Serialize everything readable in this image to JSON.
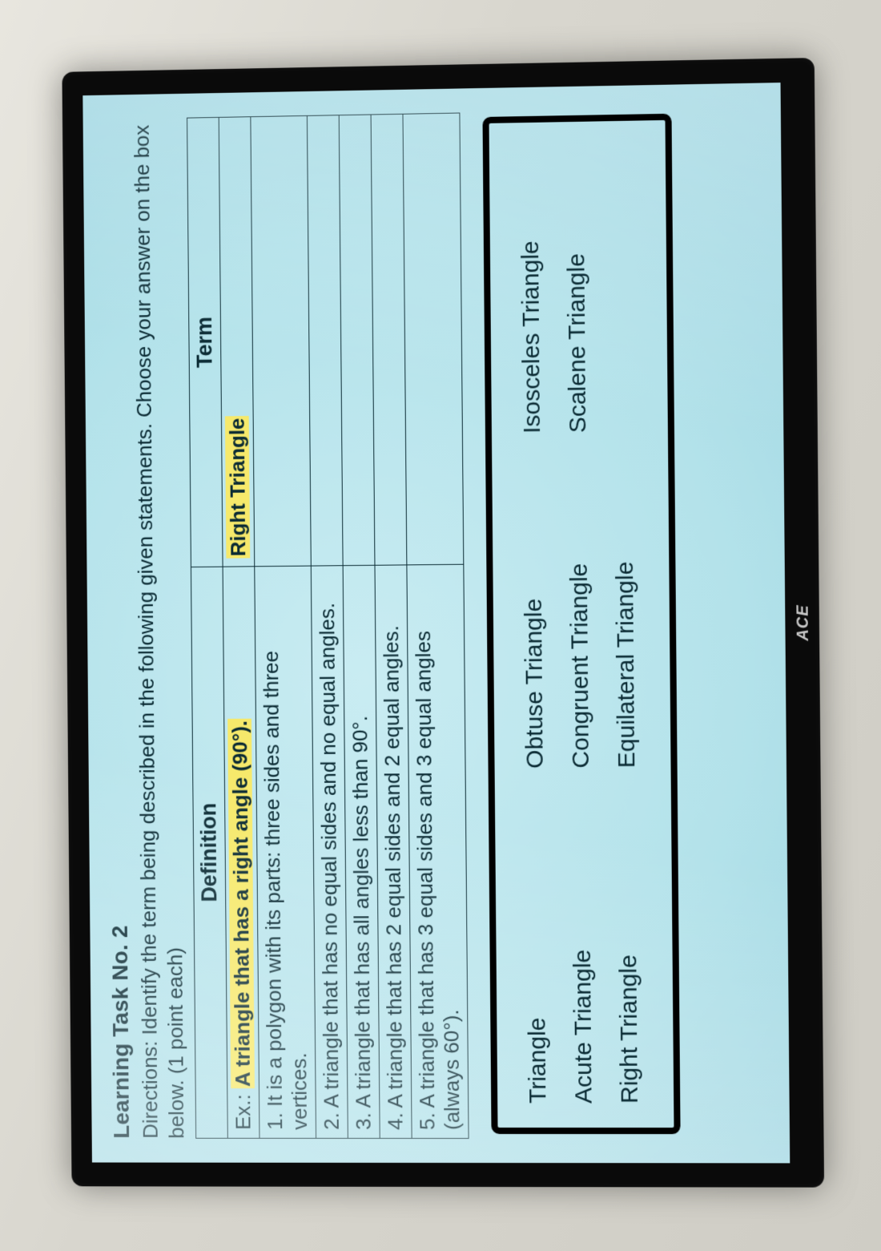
{
  "heading": "Learning Task No. 2",
  "directions": "Directions: Identify the term being described in the following given statements. Choose your answer on the box below. (1 point each)",
  "table": {
    "headers": {
      "definition": "Definition",
      "term": "Term"
    },
    "example": {
      "label": "Ex.:",
      "text_pre": " ",
      "highlight": "A triangle that has a right angle (90°).",
      "term": "Right Triangle"
    },
    "rows": [
      {
        "def": "1. It is a polygon with its parts: three sides and three vertices.",
        "term": ""
      },
      {
        "def": "2. A triangle that has no equal sides and no equal angles.",
        "term": ""
      },
      {
        "def": "3. A triangle that has all angles less than 90°.",
        "term": ""
      },
      {
        "def": "4. A triangle that has 2 equal sides and 2 equal angles.",
        "term": ""
      },
      {
        "def": "5. A triangle that has 3 equal sides and 3 equal angles (always 60°).",
        "term": ""
      }
    ]
  },
  "answer_box": {
    "col1": [
      "Triangle",
      "Acute Triangle",
      "Right Triangle"
    ],
    "col2": [
      "Obtuse Triangle",
      "Congruent Triangle",
      "Equilateral Triangle"
    ],
    "col3": [
      "Isosceles Triangle",
      "Scalene Triangle"
    ]
  },
  "brand": "ACE",
  "style": {
    "page_bg_start": "#e8e6df",
    "page_bg_end": "#cfcdc5",
    "bezel_color": "#0a0a0a",
    "screen_bg_center": "#c9ecf2",
    "screen_bg_edge": "#8cc9d8",
    "text_color": "#0a2a33",
    "highlight_color": "#f6e96b",
    "border_color": "#0a2a33",
    "answer_box_border": "#000000",
    "heading_fontsize": 28,
    "body_fontsize": 26,
    "answer_fontsize": 30,
    "rotation_deg": -90.5
  }
}
